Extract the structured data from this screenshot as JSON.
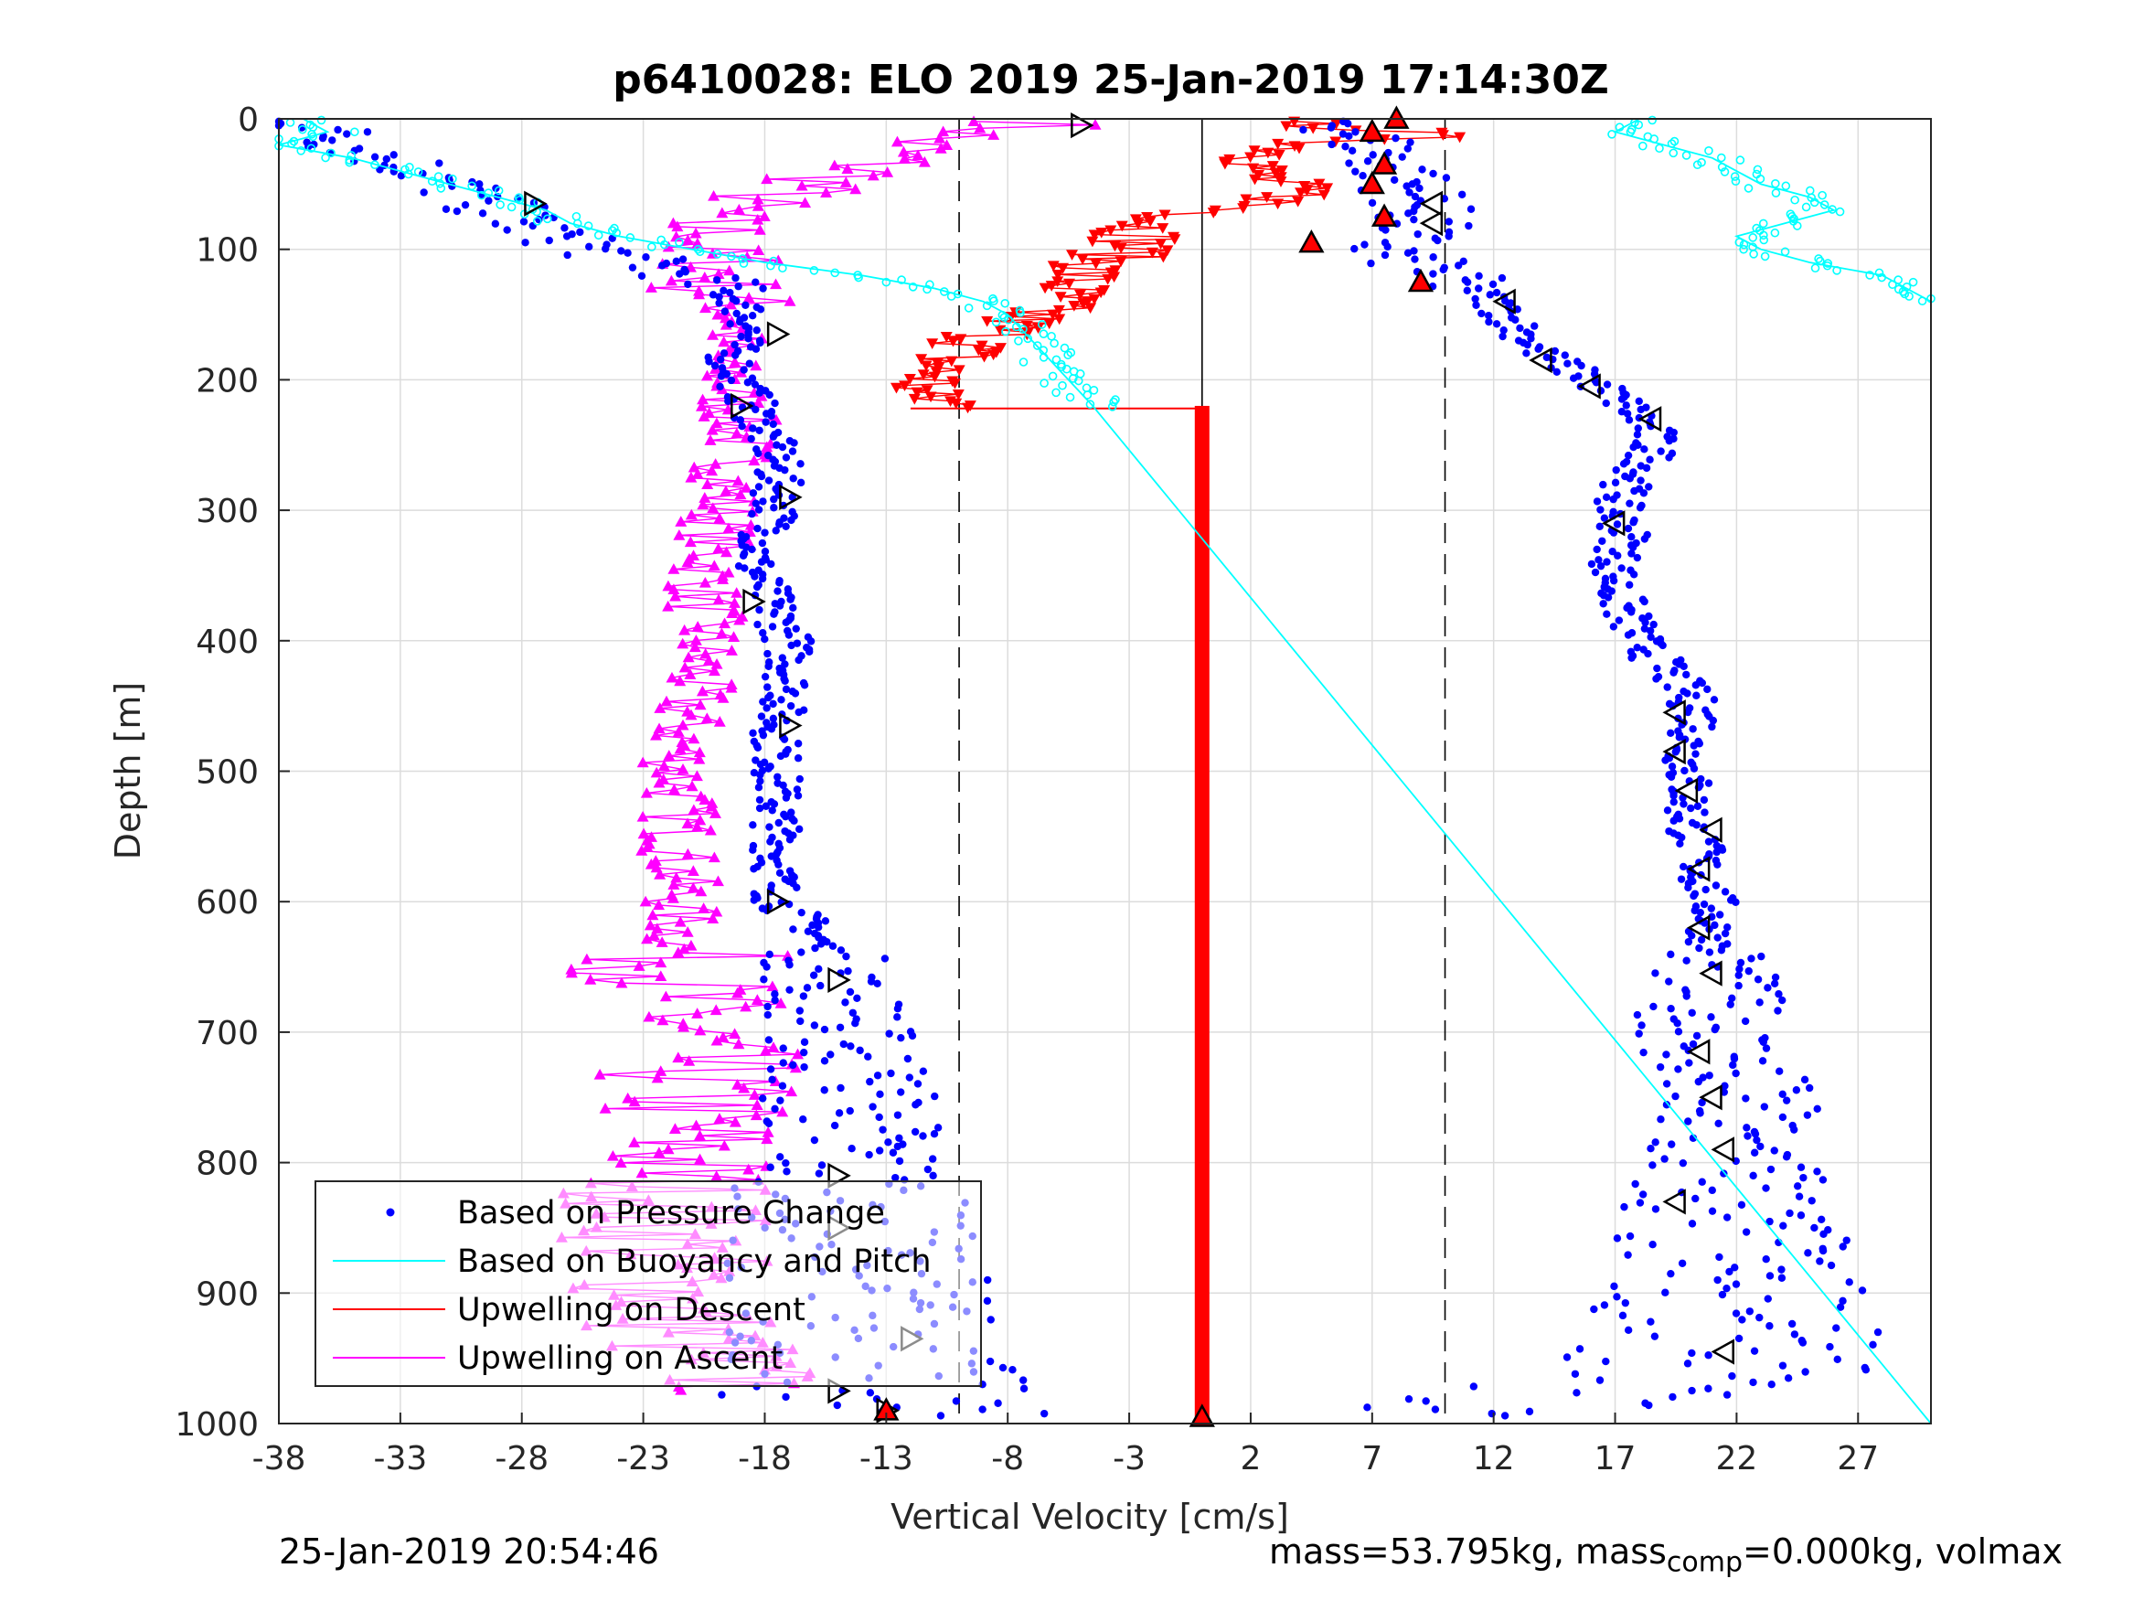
{
  "chart_data": {
    "type": "scatter",
    "title": "p6410028: ELO 2019 25-Jan-2019 17:14:30Z",
    "xlabel": "Vertical Velocity [cm/s]",
    "ylabel": "Depth [m]",
    "xlim": [
      -38,
      30
    ],
    "ylim": [
      0,
      1000
    ],
    "y_reversed": true,
    "grid": true,
    "legend_placement": "bottom-left",
    "x_ticks": [
      -38,
      -33,
      -28,
      -23,
      -18,
      -13,
      -8,
      -3,
      2,
      7,
      12,
      17,
      22,
      27
    ],
    "y_ticks": [
      0,
      100,
      200,
      300,
      400,
      500,
      600,
      700,
      800,
      900,
      1000
    ],
    "reference_lines": [
      {
        "kind": "solid",
        "x": 0
      },
      {
        "kind": "dashed",
        "x": -10
      },
      {
        "kind": "dashed",
        "x": 10
      }
    ],
    "series": [
      {
        "name": "Based on Pressure Change",
        "color": "#0000ff",
        "marker": "dot",
        "descent": {
          "depth": [
            0,
            10,
            20,
            40,
            60,
            80,
            100,
            120,
            140,
            160,
            180,
            200,
            220,
            240,
            260,
            280,
            300,
            320,
            340,
            360,
            380,
            400,
            420,
            440,
            460,
            480,
            500,
            520,
            540,
            560,
            580,
            600,
            620,
            640,
            660,
            680,
            700,
            720,
            740,
            760,
            780,
            800,
            820,
            840,
            860,
            880,
            900,
            920,
            940,
            960,
            980,
            995
          ],
          "velocity": [
            -37,
            -36,
            -35,
            -32,
            -30,
            -28,
            -25,
            -21,
            -19,
            -18.5,
            -19.5,
            -19,
            -18.5,
            -18,
            -17.5,
            -17.5,
            -17.5,
            -18,
            -18.5,
            -18,
            -17.5,
            -17,
            -17,
            -17,
            -17.5,
            -17.5,
            -17.5,
            -17.5,
            -17.5,
            -17.5,
            -17.5,
            -17.5,
            -16,
            -15.5,
            -15.5,
            -15,
            -15,
            -14.5,
            -14.5,
            -14.5,
            -14.5,
            -14.5,
            -14.5,
            -14.5,
            -14.5,
            -14,
            -14,
            -14,
            -13.5,
            -14,
            -13.5,
            -13
          ]
        },
        "ascent": {
          "depth": [
            995,
            980,
            960,
            940,
            920,
            900,
            880,
            860,
            840,
            820,
            800,
            780,
            760,
            740,
            720,
            700,
            680,
            660,
            640,
            620,
            600,
            580,
            560,
            540,
            520,
            500,
            480,
            460,
            440,
            420,
            400,
            380,
            360,
            340,
            320,
            300,
            280,
            260,
            240,
            220,
            200,
            180,
            160,
            140,
            120,
            100,
            80,
            60,
            40,
            20,
            5
          ],
          "velocity": [
            10,
            15,
            21,
            21.5,
            22,
            22,
            21.5,
            21.5,
            21.5,
            21.5,
            21.5,
            21.5,
            21.5,
            21.5,
            21,
            21,
            21,
            21,
            21,
            21,
            21,
            20.5,
            20.5,
            20,
            20,
            20,
            20,
            20.5,
            20,
            19,
            18,
            17.5,
            17,
            17,
            17.5,
            17,
            17.5,
            18.5,
            18.5,
            17.5,
            16,
            14,
            13,
            12,
            10,
            7.5,
            9,
            9,
            8,
            7,
            6
          ]
        }
      },
      {
        "name": "Based on Buoyancy and Pitch",
        "color": "#00ffff",
        "marker": "circle",
        "descent": {
          "depth": [
            0,
            10,
            20,
            30,
            40,
            50,
            60,
            70,
            80,
            90,
            100,
            110,
            120,
            130,
            140,
            150,
            160,
            170,
            180,
            190,
            200,
            210,
            220,
            1000
          ],
          "velocity": [
            -37,
            -36,
            -38,
            -35,
            -33,
            -31,
            -29,
            -27,
            -26,
            -24,
            -21,
            -18,
            -14,
            -11,
            -9,
            -8,
            -7.5,
            -7,
            -6.5,
            -6,
            -5.5,
            -5,
            -4.5,
            30
          ]
        },
        "ascent": {
          "depth": [
            0,
            10,
            20,
            30,
            40,
            50,
            60,
            70,
            80,
            90,
            100,
            110,
            120,
            130,
            140
          ],
          "velocity": [
            18,
            17,
            19,
            21,
            22,
            23,
            25,
            26,
            24,
            22,
            23,
            25,
            28,
            29,
            30
          ]
        }
      },
      {
        "name": "Upwelling on Descent",
        "color": "#ff0000",
        "marker": "triangle-down",
        "depth": [
          0,
          5,
          10,
          15,
          20,
          30,
          40,
          50,
          60,
          80,
          100,
          120,
          140,
          160,
          170,
          180,
          190,
          200,
          210,
          220,
          400,
          600,
          800,
          1000
        ],
        "velocity": [
          0,
          5,
          8,
          9,
          4,
          3,
          2,
          3,
          4,
          -2,
          -3,
          -5,
          -6,
          -8,
          -9,
          -10,
          -11,
          -11,
          -12,
          -10,
          0,
          0,
          0,
          0
        ]
      },
      {
        "name": "Upwelling on Ascent",
        "color": "#ff00ff",
        "marker": "triangle-up",
        "depth": [
          0,
          5,
          10,
          15,
          20,
          30,
          40,
          50,
          60,
          70,
          80,
          90,
          100,
          110,
          120,
          130,
          140,
          160,
          180,
          200,
          240,
          280,
          320,
          360,
          400,
          440,
          480,
          520,
          560,
          600,
          640,
          680,
          720,
          760,
          800,
          840,
          880,
          920,
          960,
          975
        ],
        "velocity": [
          -6,
          -7,
          -9,
          -11,
          -12,
          -13,
          -14,
          -16,
          -18,
          -20,
          -21,
          -19.5,
          -21,
          -19.5,
          -20,
          -20,
          -19.5,
          -19,
          -20,
          -19.5,
          -19,
          -19.5,
          -20,
          -20.5,
          -20.5,
          -21,
          -21.5,
          -21.5,
          -21.5,
          -21.5,
          -21.5,
          -21.5,
          -21,
          -21,
          -21.5,
          -22,
          -22,
          -21.5,
          -20,
          -18
        ]
      }
    ],
    "markers": [
      {
        "kind": "triangle-right",
        "depth": [
          5,
          65,
          165,
          220,
          290,
          370,
          465,
          600,
          660,
          810,
          850,
          935,
          975,
          990
        ],
        "velocity": [
          -5,
          -27.5,
          -17.5,
          -19,
          -17,
          -18.5,
          -17,
          -17.5,
          -15,
          -15,
          -15,
          -12,
          -15,
          -13
        ]
      },
      {
        "kind": "triangle-left",
        "depth": [
          65,
          80,
          140,
          185,
          205,
          230,
          310,
          455,
          485,
          515,
          545,
          575,
          620,
          655,
          715,
          750,
          790,
          830,
          945
        ],
        "velocity": [
          9.5,
          9.5,
          12.5,
          14,
          16,
          18.5,
          17,
          19.5,
          19.5,
          20,
          21,
          20.5,
          20.5,
          21,
          20.5,
          21,
          21.5,
          19.5,
          21.5
        ]
      },
      {
        "kind": "triangle-filled",
        "depth": [
          0,
          10,
          35,
          50,
          75,
          95,
          125,
          990,
          995
        ],
        "velocity": [
          8,
          7,
          7.5,
          7,
          7.5,
          4.5,
          9,
          -13,
          0
        ]
      }
    ]
  },
  "footer": {
    "timestamp": "25-Jan-2019 20:54:46",
    "mass_text": "mass=53.795kg, mass",
    "mass_sub": "comp",
    "mass_tail": "=0.000kg, volmax"
  }
}
